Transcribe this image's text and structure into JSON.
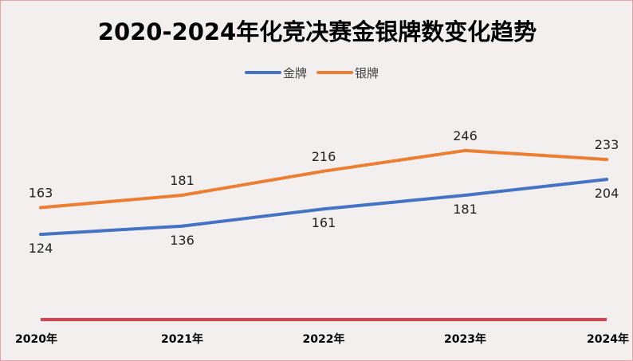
{
  "chart_data": {
    "type": "line",
    "title": "2020-2024年化竞决赛金银牌数变化趋势",
    "categories": [
      "2020年",
      "2021年",
      "2022年",
      "2023年",
      "2024年"
    ],
    "series": [
      {
        "name": "金牌",
        "values": [
          124,
          136,
          161,
          181,
          204
        ],
        "color": "#4472c4",
        "label_position": "below"
      },
      {
        "name": "银牌",
        "values": [
          163,
          181,
          216,
          246,
          233
        ],
        "color": "#ed7d31",
        "label_position": "above"
      }
    ],
    "ylim": [
      0,
      290
    ],
    "grid": false,
    "legend_position": "top",
    "axis_line_color": "#d9414f",
    "xlabel": "",
    "ylabel": ""
  }
}
